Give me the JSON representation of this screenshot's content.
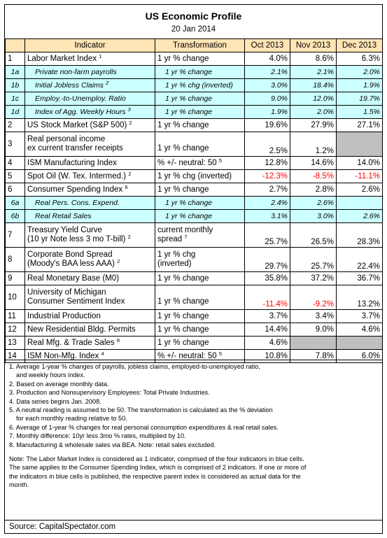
{
  "title": "US Economic Profile",
  "date": "20 Jan 2014",
  "headers": [
    "Indicator",
    "Transformation",
    "Oct 2013",
    "Nov 2013",
    "Dec 2013"
  ],
  "rows": [
    {
      "id": "1",
      "ind1": "Labor Market Index",
      "ind_sup": "1",
      "tr1": "1 yr % change",
      "oct": "4.0%",
      "nov": "8.6%",
      "dec": "6.3%"
    },
    {
      "id": "1a",
      "ind1": "Private non-farm payrolls",
      "tr1": "1 yr % change",
      "oct": "2.1%",
      "nov": "2.1%",
      "dec": "2.0%"
    },
    {
      "id": "1b",
      "ind1": "Initial Jobless Claims",
      "ind_sup": "2",
      "tr1": "1 yr % chg (inverted)",
      "oct": "3.0%",
      "nov": "18.4%",
      "dec": "1.9%"
    },
    {
      "id": "1c",
      "ind1": "Employ.-to-Unemploy. Ratio",
      "tr1": "1 yr % change",
      "oct": "9.0%",
      "nov": "12.0%",
      "dec": "19.7%"
    },
    {
      "id": "1d",
      "ind1": "Index of Agg. Weekly Hours",
      "ind_sup": "3",
      "tr1": "1 yr % change",
      "oct": "1.9%",
      "nov": "2.0%",
      "dec": "1.5%"
    },
    {
      "id": "2",
      "ind1": "US Stock Market (S&P 500)",
      "ind_sup": "2",
      "tr1": "1 yr % change",
      "oct": "19.6%",
      "nov": "27.9%",
      "dec": "27.1%"
    },
    {
      "id": "3",
      "ind1": "Real personal income",
      "ind2": "ex current transfer receipts",
      "tr1": "",
      "tr2": "1 yr % change",
      "oct": "2.5%",
      "nov": "1.2%",
      "dec": ""
    },
    {
      "id": "4",
      "ind1": "ISM Manufacturing Index",
      "tr1": "% +/- neutral: 50",
      "tr_sup": "5",
      "oct": "12.8%",
      "nov": "14.6%",
      "dec": "14.0%"
    },
    {
      "id": "5",
      "ind1": "Spot Oil (W. Tex. Intermed.)",
      "ind_sup": "2",
      "tr1": "1 yr % chg (inverted)",
      "oct": "-12.3%",
      "nov": "-8.5%",
      "dec": "-11.1%"
    },
    {
      "id": "6",
      "ind1": "Consumer Spending Index",
      "ind_sup": "6",
      "tr1": "1 yr % change",
      "oct": "2.7%",
      "nov": "2.8%",
      "dec": "2.6%"
    },
    {
      "id": "6a",
      "ind1": "Real Pers. Cons. Expend.",
      "tr1": "1 yr % change",
      "oct": "2.4%",
      "nov": "2.6%",
      "dec": ""
    },
    {
      "id": "6b",
      "ind1": "Real Retail Sales",
      "tr1": "1 yr % change",
      "oct": "3.1%",
      "nov": "3.0%",
      "dec": "2.6%"
    },
    {
      "id": "7",
      "ind1": "Treasury Yield Curve",
      "ind2": "(10 yr Note less 3 mo T-bill)",
      "ind_sup": "2",
      "tr1": "current monthly",
      "tr2": "spread",
      "tr_sup": "7",
      "oct": "25.7%",
      "nov": "26.5%",
      "dec": "28.3%"
    },
    {
      "id": "8",
      "ind1": "Corporate Bond Spread",
      "ind2": "(Moody's BAA less AAA)",
      "ind_sup": "2",
      "tr1": "1 yr % chg",
      "tr2": "(inverted)",
      "oct": "29.7%",
      "nov": "25.7%",
      "dec": "22.4%"
    },
    {
      "id": "9",
      "ind1": "Real Monetary Base (M0)",
      "tr1": "1 yr % change",
      "oct": "35.8%",
      "nov": "37.2%",
      "dec": "36.7%"
    },
    {
      "id": "10",
      "ind1": "University of Michigan",
      "ind2": "Consumer Sentiment Index",
      "tr1": "",
      "tr2": "1 yr % change",
      "oct": "-11.4%",
      "nov": "-9.2%",
      "dec": "13.2%"
    },
    {
      "id": "11",
      "ind1": "Industrial Production",
      "tr1": "1 yr % change",
      "oct": "3.7%",
      "nov": "3.4%",
      "dec": "3.7%"
    },
    {
      "id": "12",
      "ind1": "New Residential Bldg. Permits",
      "tr1": "1 yr % change",
      "oct": "14.4%",
      "nov": "9.0%",
      "dec": "4.6%"
    },
    {
      "id": "13",
      "ind1": "Real Mfg. & Trade Sales",
      "ind_sup": "8",
      "tr1": "1 yr % change",
      "oct": "4.6%",
      "nov": "",
      "dec": ""
    },
    {
      "id": "14",
      "ind1": "ISM Non-Mfg. Index",
      "ind_sup": "4",
      "tr1": "% +/- neutral: 50",
      "tr_sup": "5",
      "oct": "10.8%",
      "nov": "7.8%",
      "dec": "6.0%"
    }
  ],
  "notes": [
    "1. Average 1-year % changes of payrolls, jobless claims, employed-to-unemployed ratio,",
    "and weekly hours index.",
    "2. Based on average monthly data.",
    "3. Production and Nonsupervisory Employees: Total Private Industries.",
    "4. Data series begins Jan. 2008.",
    "5. A neutral reading is assumed to be 50. The transformation is calculated as the % deviation",
    "for each monthly reading relative to 50.",
    "6. Average of 1-year % changes for real personal consumption expenditures & real retail sales.",
    "7. Monthly difference: 10yr less 3mo % rates, multiplied by 10.",
    "8. Manufacturing & wholesale sales via BEA. Note: retail sales excluded."
  ],
  "note_text": [
    "Note: The Labor Market Index is considered as 1 indicator, comprised of the four indicators in blue cells.",
    "The same applies to the Consumer Spending Index, which is comprised of 2 indicators. If one or more of",
    "the indicators in blue cells is published, the respective parent index is considered as actual data for the",
    "month."
  ],
  "source": "Source: CapitalSpectator.com",
  "colors": {
    "header": "#FFE4B5",
    "sub_rows": "#CCFFFF",
    "negative": "#FF0000",
    "unavailable": "#C0C0C0"
  }
}
